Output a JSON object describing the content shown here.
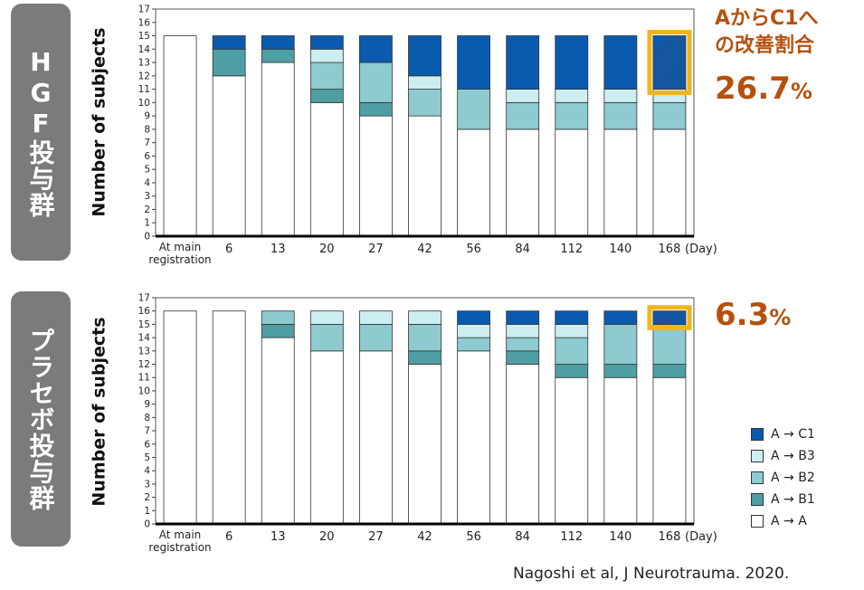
{
  "groups": {
    "hgf_label": "HGF投与群",
    "placebo_label": "プラセボ投与群"
  },
  "annotation": {
    "title_line1": "AからC1へ",
    "title_line2": "の改善割合",
    "hgf_rate": "26.7",
    "placebo_rate": "6.3",
    "pct_symbol": "%"
  },
  "legend": {
    "items": [
      {
        "label": "A → C1",
        "color": "#0a5aae"
      },
      {
        "label": "A → B3",
        "color": "#cdeef0"
      },
      {
        "label": "A → B2",
        "color": "#8dcbd0"
      },
      {
        "label": "A → B1",
        "color": "#4f9ea3"
      },
      {
        "label": "A → A",
        "color": "#ffffff"
      }
    ]
  },
  "citation": "Nagoshi et al, J Neurotrauma. 2020.",
  "chart_data": [
    {
      "type": "bar",
      "stacked": true,
      "panel": "HGF投与群",
      "ylabel": "Number of subjects",
      "xunit": "(Day)",
      "ylim": [
        0,
        17
      ],
      "yticks": [
        0,
        1,
        2,
        3,
        4,
        5,
        6,
        7,
        8,
        9,
        10,
        11,
        12,
        13,
        14,
        15,
        16,
        17
      ],
      "categories": [
        "At main registration",
        "6",
        "13",
        "20",
        "27",
        "42",
        "56",
        "84",
        "112",
        "140",
        "168"
      ],
      "series": [
        {
          "name": "A → A",
          "color": "#ffffff",
          "values": [
            15,
            12,
            13,
            10,
            9,
            9,
            8,
            8,
            8,
            8,
            8
          ]
        },
        {
          "name": "A → B1",
          "color": "#4f9ea3",
          "values": [
            0,
            2,
            1,
            1,
            1,
            0,
            0,
            0,
            0,
            0,
            0
          ]
        },
        {
          "name": "A → B2",
          "color": "#8dcbd0",
          "values": [
            0,
            0,
            0,
            2,
            3,
            2,
            3,
            2,
            2,
            2,
            2
          ]
        },
        {
          "name": "A → B3",
          "color": "#cdeef0",
          "values": [
            0,
            0,
            0,
            1,
            0,
            1,
            0,
            1,
            1,
            1,
            1
          ]
        },
        {
          "name": "A → C1",
          "color": "#0a5aae",
          "values": [
            0,
            1,
            1,
            1,
            2,
            3,
            4,
            4,
            4,
            4,
            4
          ]
        }
      ],
      "highlight_category": "168",
      "highlight_series": "A → C1",
      "highlight_color": "#f1b51c",
      "grid": false
    },
    {
      "type": "bar",
      "stacked": true,
      "panel": "プラセボ投与群",
      "ylabel": "Number of subjects",
      "xunit": "(Day)",
      "ylim": [
        0,
        17
      ],
      "yticks": [
        0,
        1,
        2,
        3,
        4,
        5,
        6,
        7,
        8,
        9,
        10,
        11,
        12,
        13,
        14,
        15,
        16,
        17
      ],
      "categories": [
        "At main registration",
        "6",
        "13",
        "20",
        "27",
        "42",
        "56",
        "84",
        "112",
        "140",
        "168"
      ],
      "series": [
        {
          "name": "A → A",
          "color": "#ffffff",
          "values": [
            16,
            16,
            14,
            13,
            13,
            12,
            13,
            12,
            11,
            11,
            11
          ]
        },
        {
          "name": "A → B1",
          "color": "#4f9ea3",
          "values": [
            0,
            0,
            1,
            0,
            0,
            1,
            0,
            1,
            1,
            1,
            1
          ]
        },
        {
          "name": "A → B2",
          "color": "#8dcbd0",
          "values": [
            0,
            0,
            1,
            2,
            2,
            2,
            1,
            1,
            2,
            3,
            3
          ]
        },
        {
          "name": "A → B3",
          "color": "#cdeef0",
          "values": [
            0,
            0,
            0,
            1,
            1,
            1,
            1,
            1,
            1,
            0,
            0
          ]
        },
        {
          "name": "A → C1",
          "color": "#0a5aae",
          "values": [
            0,
            0,
            0,
            0,
            0,
            0,
            1,
            1,
            1,
            1,
            1
          ]
        }
      ],
      "highlight_category": "168",
      "highlight_series": "A → C1",
      "highlight_color": "#f1b51c",
      "grid": false
    }
  ]
}
